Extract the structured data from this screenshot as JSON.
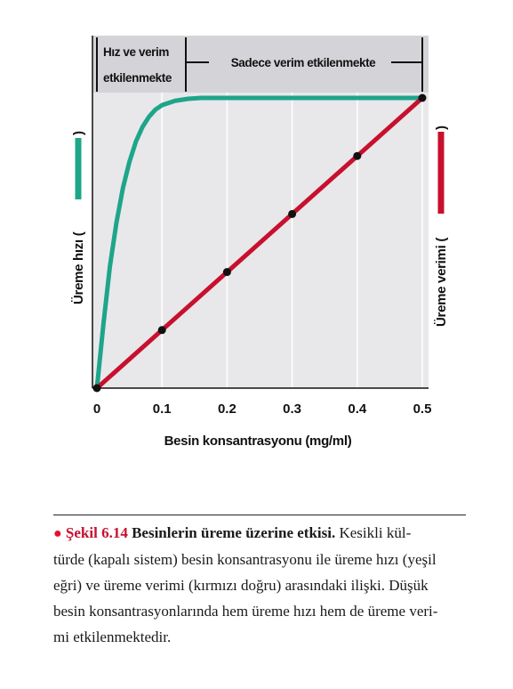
{
  "chart_data": {
    "type": "line",
    "xlabel": "Besin konsantrasyonu (mg/ml)",
    "ylabel_left": "Üreme hızı (",
    "ylabel_left_close": ")",
    "ylabel_right": "Üreme verimi (",
    "ylabel_right_close": ")",
    "x_ticks": [
      "0",
      "0.1",
      "0.2",
      "0.3",
      "0.4",
      "0.5"
    ],
    "xlim": [
      0,
      0.5
    ],
    "ylim": [
      0,
      1
    ],
    "regions": [
      {
        "label_lines": [
          "Hız ve verim",
          "etkilenmekte"
        ],
        "x_range": [
          0,
          0.135
        ]
      },
      {
        "label_lines": [
          "Sadece verim etkilenmekte"
        ],
        "x_range": [
          0.135,
          0.5
        ]
      }
    ],
    "series": [
      {
        "name": "Üreme hızı",
        "color": "#1ea58a",
        "x": [
          0,
          0.01,
          0.02,
          0.03,
          0.04,
          0.05,
          0.06,
          0.07,
          0.08,
          0.09,
          0.1,
          0.12,
          0.14,
          0.16,
          0.2,
          0.3,
          0.4,
          0.5
        ],
        "y": [
          0,
          0.22,
          0.42,
          0.57,
          0.69,
          0.78,
          0.85,
          0.9,
          0.935,
          0.96,
          0.975,
          0.99,
          0.997,
          1.0,
          1.0,
          1.0,
          1.0,
          1.0
        ]
      },
      {
        "name": "Üreme verimi",
        "color": "#c8102e",
        "x": [
          0,
          0.1,
          0.2,
          0.3,
          0.4,
          0.5
        ],
        "y": [
          0,
          0.2,
          0.4,
          0.6,
          0.8,
          1.0
        ],
        "markers": true
      }
    ]
  },
  "caption": {
    "bullet": "●",
    "figure": "Şekil 6.14",
    "title": "Besinlerin üreme üzerine etkisi.",
    "line1": "Kesikli kül-",
    "line2": "türde (kapalı sistem) besin konsantrasyonu ile üreme hızı (yeşil",
    "line3": "eğri) ve üreme verimi (kırmızı doğru) arasındaki ilişki. Düşük",
    "line4": "besin konsantrasyonlarında hem üreme hızı hem de üreme veri-",
    "line5": "mi etkilenmektedir."
  }
}
